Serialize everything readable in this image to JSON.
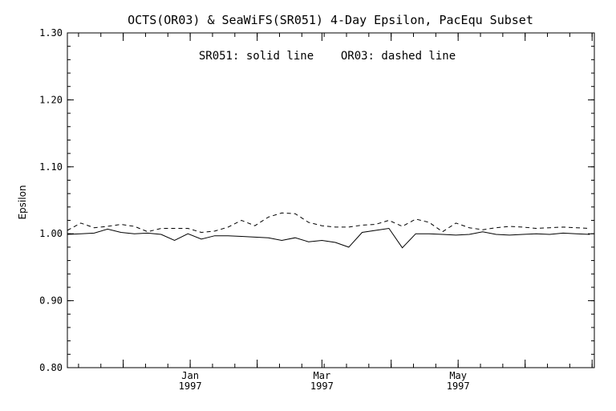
{
  "chart_data": {
    "type": "line",
    "title": "OCTS(OR03) & SeaWiFS(SR051) 4-Day Epsilon, PacEqu Subset",
    "annotation": "SR051: solid line    OR03: dashed line",
    "xlabel": "",
    "ylabel": "Epsilon",
    "ylim": [
      0.8,
      1.3
    ],
    "y_ticks": [
      "0.80",
      "0.90",
      "1.00",
      "1.10",
      "1.20",
      "1.30"
    ],
    "x_ticks": [
      {
        "label": "Jan",
        "year": "1997",
        "x": 20
      },
      {
        "label": "Mar",
        "year": "1997",
        "x": 79
      },
      {
        "label": "May",
        "year": "1997",
        "x": 140
      }
    ],
    "xlim": [
      -35,
      201
    ],
    "x": [
      -35,
      -29,
      -23,
      -17,
      -11,
      -5,
      1,
      7,
      13,
      19,
      25,
      31,
      37,
      43,
      49,
      55,
      61,
      67,
      73,
      79,
      85,
      91,
      97,
      103,
      109,
      115,
      121,
      127,
      133,
      139,
      145,
      151,
      157,
      163,
      169,
      175,
      181,
      187,
      193,
      199
    ],
    "series": [
      {
        "name": "SR051",
        "style": "solid",
        "values": [
          0.999,
          1.0,
          1.001,
          1.007,
          1.002,
          1.0,
          1.001,
          0.999,
          0.99,
          1.0,
          0.992,
          0.997,
          0.997,
          0.996,
          0.995,
          0.994,
          0.99,
          0.994,
          0.988,
          0.99,
          0.987,
          0.98,
          1.002,
          1.005,
          1.008,
          0.979,
          1.0,
          1.0,
          0.999,
          0.998,
          0.999,
          1.003,
          0.999,
          0.998,
          0.999,
          1.0,
          0.999,
          1.001,
          1.0,
          0.999
        ]
      },
      {
        "name": "OR03",
        "style": "dashed",
        "values": [
          1.005,
          1.016,
          1.009,
          1.011,
          1.014,
          1.011,
          1.003,
          1.008,
          1.008,
          1.008,
          1.002,
          1.004,
          1.01,
          1.02,
          1.012,
          1.025,
          1.031,
          1.03,
          1.017,
          1.012,
          1.01,
          1.01,
          1.013,
          1.014,
          1.02,
          1.011,
          1.022,
          1.017,
          1.003,
          1.016,
          1.009,
          1.006,
          1.009,
          1.011,
          1.01,
          1.008,
          1.009,
          1.01,
          1.009,
          1.008
        ]
      }
    ],
    "grid": false,
    "line_color": "#000000"
  }
}
